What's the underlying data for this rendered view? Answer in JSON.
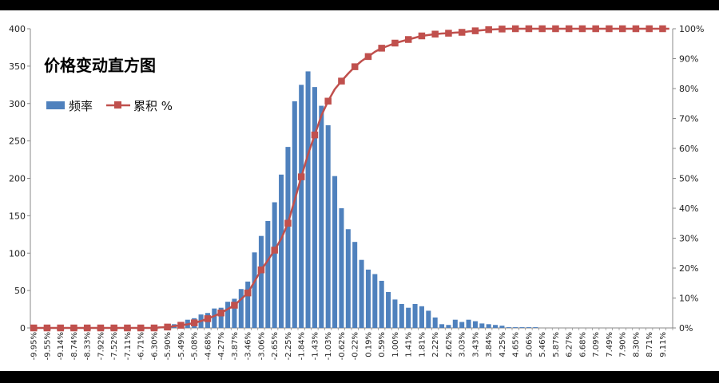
{
  "chart_data": {
    "type": "bar",
    "title": "价格变动直方图",
    "series": [
      {
        "name": "频率",
        "type": "bar",
        "axis": "left",
        "color": "#4F81BD",
        "values": [
          0,
          0,
          0,
          0,
          0,
          0,
          0,
          0,
          0,
          0,
          0,
          0,
          0,
          0,
          0,
          0,
          0,
          0,
          0,
          2,
          3,
          5,
          8,
          11,
          13,
          18,
          20,
          26,
          27,
          35,
          39,
          52,
          62,
          101,
          123,
          143,
          168,
          205,
          242,
          303,
          325,
          343,
          322,
          297,
          271,
          203,
          160,
          132,
          115,
          91,
          78,
          72,
          63,
          48,
          38,
          32,
          27,
          32,
          29,
          23,
          14,
          5,
          4,
          11,
          8,
          11,
          9,
          6,
          5,
          4,
          3,
          1,
          1,
          1,
          1,
          1,
          0,
          0,
          0,
          0,
          0,
          0,
          0,
          0,
          0,
          0,
          0,
          0,
          0,
          0,
          0,
          0,
          0,
          0,
          0,
          0
        ]
      },
      {
        "name": "累积 %",
        "type": "line",
        "axis": "right",
        "color": "#C0504D",
        "values": [
          0,
          0,
          0,
          0,
          0,
          0,
          0,
          0,
          0,
          0,
          0,
          0,
          0,
          0,
          0,
          0,
          0,
          0,
          0,
          0.2,
          0.3,
          0.6,
          0.9,
          1.2,
          1.7,
          2.3,
          3.1,
          4.0,
          5.0,
          6.3,
          7.6,
          9.6,
          11.7,
          15.5,
          19.4,
          22.6,
          26.0,
          29.8,
          35.0,
          42.7,
          50.5,
          58.0,
          64.5,
          71.0,
          75.8,
          79.8,
          82.5,
          85.0,
          87.3,
          89.2,
          90.7,
          92.3,
          93.5,
          94.3,
          95.2,
          95.8,
          96.4,
          97.0,
          97.6,
          97.9,
          98.2,
          98.4,
          98.5,
          98.7,
          98.8,
          99.1,
          99.3,
          99.5,
          99.7,
          99.8,
          99.9,
          100,
          100,
          100,
          100,
          100,
          100,
          100,
          100,
          100,
          100,
          100,
          100,
          100,
          100,
          100,
          100,
          100,
          100,
          100,
          100,
          100,
          100,
          100,
          100,
          100
        ]
      }
    ],
    "categories": [
      "-9.95%",
      "",
      "-9.55%",
      "",
      "-9.14%",
      "",
      "-8.74%",
      "",
      "-8.33%",
      "",
      "-7.92%",
      "",
      "-7.52%",
      "",
      "-7.11%",
      "",
      "-6.71%",
      "",
      "-6.30%",
      "",
      "-5.90%",
      "",
      "-5.49%",
      "",
      "-5.08%",
      "",
      "-4.68%",
      "",
      "-4.27%",
      "",
      "-3.87%",
      "",
      "-3.46%",
      "",
      "-3.06%",
      "",
      "-2.65%",
      "",
      "-2.25%",
      "",
      "-1.84%",
      "",
      "-1.43%",
      "",
      "-1.03%",
      "",
      "-0.62%",
      "",
      "-0.22%",
      "",
      "0.19%",
      "",
      "0.59%",
      "",
      "1.00%",
      "",
      "1.41%",
      "",
      "1.81%",
      "",
      "2.22%",
      "",
      "2.62%",
      "",
      "3.03%",
      "",
      "3.43%",
      "",
      "3.84%",
      "",
      "4.25%",
      "",
      "4.65%",
      "",
      "5.06%",
      "",
      "5.46%",
      "",
      "5.87%",
      "",
      "6.27%",
      "",
      "6.68%",
      "",
      "7.09%",
      "",
      "7.49%",
      "",
      "7.90%",
      "",
      "8.30%",
      "",
      "8.71%",
      "",
      "9.11%",
      ""
    ],
    "y_left": {
      "min": 0,
      "max": 400,
      "ticks": [
        "0",
        "50",
        "100",
        "150",
        "200",
        "250",
        "300",
        "350",
        "400"
      ]
    },
    "y_right": {
      "min": 0,
      "max": 100,
      "ticks": [
        "0%",
        "10%",
        "20%",
        "30%",
        "40%",
        "50%",
        "60%",
        "70%",
        "80%",
        "90%",
        "100%"
      ]
    },
    "grid": false,
    "legend": {
      "position": "left",
      "items": [
        {
          "label": "频率",
          "marker": "bar"
        },
        {
          "label": "累积 %",
          "marker": "line"
        }
      ]
    }
  }
}
